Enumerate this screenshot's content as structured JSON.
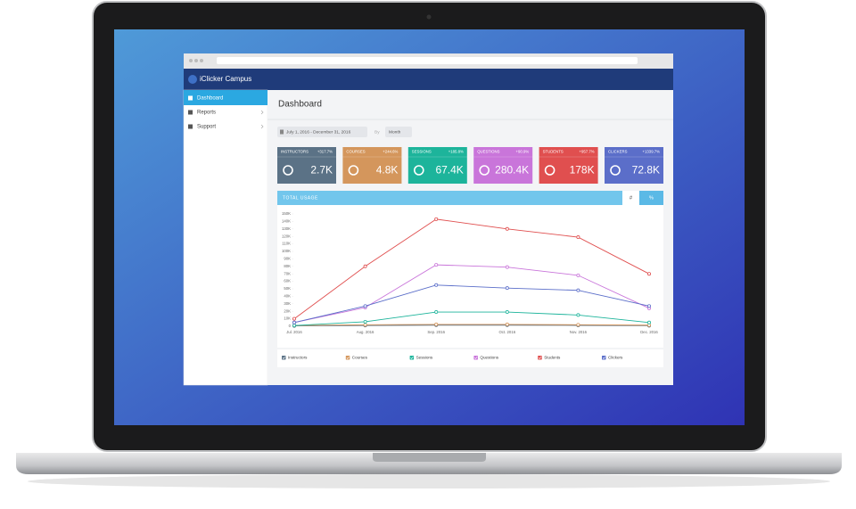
{
  "app": {
    "brand": "iClicker Campus"
  },
  "sidebar": {
    "items": [
      "Dashboard",
      "Reports",
      "Support"
    ]
  },
  "page_title": "Dashboard",
  "filters": {
    "date_range": "July 1, 2016 - December 31, 2016",
    "by": "By",
    "period": "Month"
  },
  "cards": [
    {
      "label": "INSTRUCTORS",
      "change": "+317.7%",
      "value": "2.7K",
      "color": "#5b7286"
    },
    {
      "label": "COURSES",
      "change": "+244.6%",
      "value": "4.8K",
      "color": "#d4965c"
    },
    {
      "label": "SESSIONS",
      "change": "+185.8%",
      "value": "67.4K",
      "color": "#1db49b"
    },
    {
      "label": "QUESTIONS",
      "change": "+90.9%",
      "value": "280.4K",
      "color": "#c975da"
    },
    {
      "label": "STUDENTS",
      "change": "+957.7%",
      "value": "178K",
      "color": "#e04f4f"
    },
    {
      "label": "CLICKERS",
      "change": "+1339.7%",
      "value": "72.8K",
      "color": "#5b6ec9"
    }
  ],
  "usage": {
    "title": "TOTAL USAGE",
    "buttons": [
      "#",
      "%"
    ]
  },
  "chart_data": {
    "type": "line",
    "categories": [
      "Jul. 2016",
      "Aug. 2016",
      "Sep. 2016",
      "Oct. 2016",
      "Nov. 2016",
      "Dec. 2016"
    ],
    "ylim": [
      0,
      150000
    ],
    "yticks": [
      0,
      {
        "value": 10000,
        "label": "10K"
      },
      {
        "value": 20000,
        "label": "20K"
      },
      {
        "value": 30000,
        "label": "30K"
      },
      {
        "value": 40000,
        "label": "40K"
      },
      {
        "value": 50000,
        "label": "50K"
      },
      {
        "value": 60000,
        "label": "60K"
      },
      {
        "value": 70000,
        "label": "70K"
      },
      {
        "value": 80000,
        "label": "80K"
      },
      {
        "value": 90000,
        "label": "90K"
      },
      {
        "value": 100000,
        "label": "100K"
      },
      {
        "value": 110000,
        "label": "110K"
      },
      {
        "value": 120000,
        "label": "120K"
      },
      {
        "value": 130000,
        "label": "130K"
      },
      {
        "value": 140000,
        "label": "140K"
      },
      {
        "value": 150000,
        "label": "150K"
      }
    ],
    "series": [
      {
        "name": "Instructors",
        "color": "#5b7286",
        "values": [
          500,
          1000,
          1500,
          1500,
          1200,
          800
        ]
      },
      {
        "name": "Courses",
        "color": "#d4965c",
        "values": [
          1000,
          2000,
          2500,
          2500,
          2000,
          1500
        ]
      },
      {
        "name": "Sessions",
        "color": "#1db49b",
        "values": [
          1000,
          6000,
          19000,
          19000,
          15000,
          5000
        ]
      },
      {
        "name": "Questions",
        "color": "#c975da",
        "values": [
          5000,
          25000,
          82000,
          79000,
          68000,
          24000
        ]
      },
      {
        "name": "Students",
        "color": "#e04f4f",
        "values": [
          10000,
          80000,
          143000,
          130000,
          119000,
          70000
        ]
      },
      {
        "name": "Clickers",
        "color": "#5b6ec9",
        "values": [
          5000,
          27000,
          55000,
          51000,
          48000,
          27000
        ]
      }
    ]
  }
}
